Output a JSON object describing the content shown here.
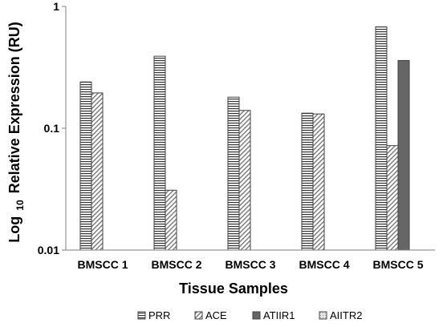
{
  "chart_data": {
    "type": "bar",
    "y_scale": "log",
    "ylim": [
      0.01,
      1
    ],
    "y_ticks": [
      "0.01",
      "0.1",
      "1"
    ],
    "grid": false,
    "legend_position": "bottom",
    "xlabel": "Tissue Samples",
    "ylabel": {
      "prefix": "Log",
      "subscript": "10",
      "text": "Relative Expression (RU)"
    },
    "categories": [
      "BMSCC 1",
      "BMSCC 2",
      "BMSCC 3",
      "BMSCC 4",
      "BMSCC 5"
    ],
    "series": [
      {
        "name": "PRR",
        "pattern": "horizontal-lines",
        "values": [
          0.24,
          0.39,
          0.18,
          0.133,
          0.68
        ]
      },
      {
        "name": "ACE",
        "pattern": "diagonal-lines",
        "values": [
          0.195,
          0.031,
          0.14,
          0.131,
          0.072
        ]
      },
      {
        "name": "ATIIR1",
        "pattern": "solid-dark",
        "color": "#666666",
        "values": [
          null,
          null,
          null,
          null,
          0.36
        ]
      },
      {
        "name": "AIITR2",
        "pattern": "light-dotted",
        "color": "#cfcfcf",
        "values": [
          null,
          null,
          null,
          null,
          null
        ]
      }
    ]
  }
}
